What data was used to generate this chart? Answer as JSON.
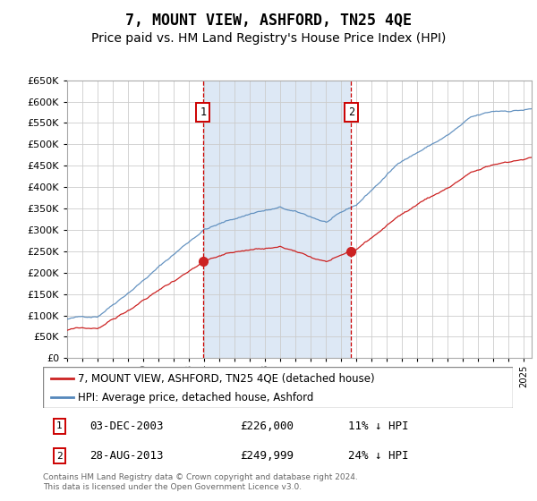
{
  "title": "7, MOUNT VIEW, ASHFORD, TN25 4QE",
  "subtitle": "Price paid vs. HM Land Registry's House Price Index (HPI)",
  "legend_line1": "7, MOUNT VIEW, ASHFORD, TN25 4QE (detached house)",
  "legend_line2": "HPI: Average price, detached house, Ashford",
  "footer": "Contains HM Land Registry data © Crown copyright and database right 2024.\nThis data is licensed under the Open Government Licence v3.0.",
  "annotation1_date": "03-DEC-2003",
  "annotation1_price": "£226,000",
  "annotation1_pct": "11% ↓ HPI",
  "annotation1_year": 2003.92,
  "annotation1_value": 226000,
  "annotation2_date": "28-AUG-2013",
  "annotation2_price": "£249,999",
  "annotation2_pct": "24% ↓ HPI",
  "annotation2_year": 2013.65,
  "annotation2_value": 249999,
  "hpi_color": "#5588bb",
  "price_color": "#cc2222",
  "annotation_color": "#cc0000",
  "background_highlight": "#dde8f5",
  "ylim_min": 0,
  "ylim_max": 650000,
  "ytick_step": 50000,
  "xmin": 1995.0,
  "xmax": 2025.5,
  "grid_color": "#cccccc",
  "title_fontsize": 12,
  "subtitle_fontsize": 10
}
